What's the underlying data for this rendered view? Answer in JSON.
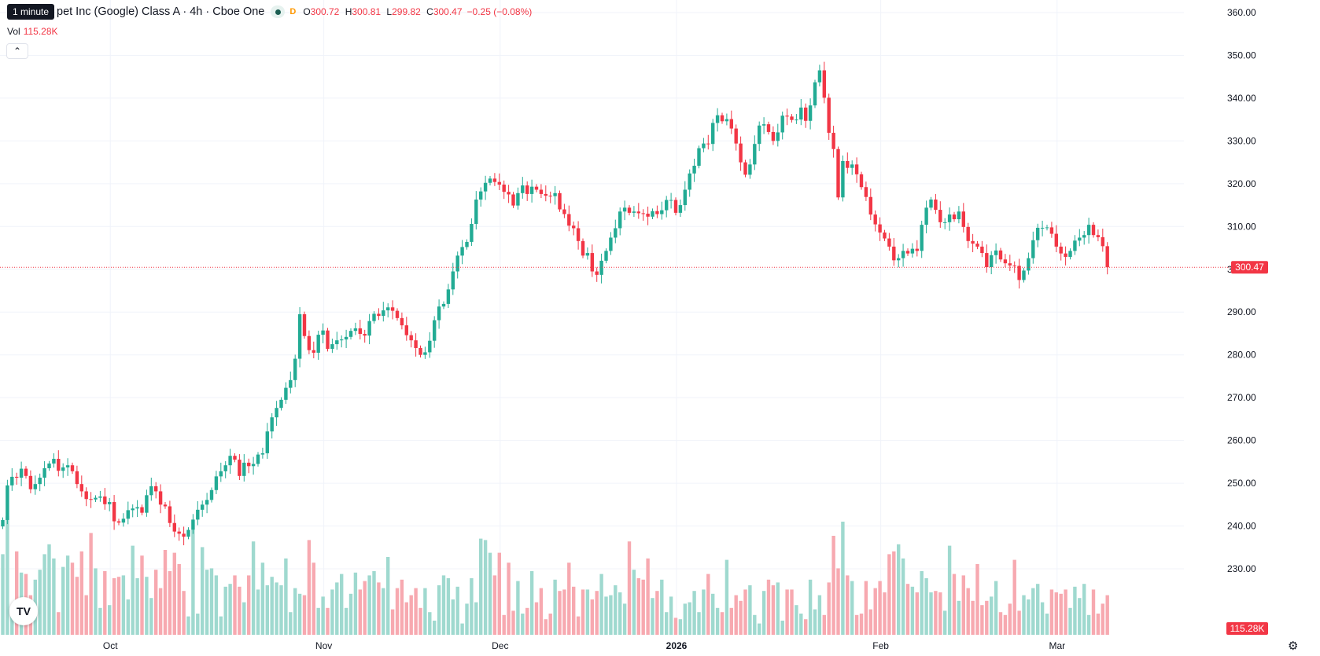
{
  "header": {
    "symbol_title": "pet Inc (Google) Class A · 4h · Cboe One",
    "interval_flag": "D",
    "ohlc": {
      "o_label": "O",
      "o": "300.72",
      "h_label": "H",
      "h": "300.81",
      "l_label": "L",
      "l": "299.82",
      "c_label": "C",
      "c": "300.47"
    },
    "change": "−0.25 (−0.08%)",
    "vol_label": "Vol",
    "vol_value": "115.28K",
    "collapse_icon": "chevron-up-icon",
    "tooltip": "1 minute"
  },
  "colors": {
    "up": "#22ab94",
    "down": "#f23645",
    "up_volume": "#9fd9cf",
    "down_volume": "#f7a9b0",
    "grid": "#f0f3fa",
    "axis_text": "#131722"
  },
  "logo_text": "TV",
  "settings_icon": "gear-icon",
  "chart_data": {
    "type": "candlestick",
    "yaxis": {
      "ticks": [
        "360.00",
        "350.00",
        "340.00",
        "330.00",
        "320.00",
        "310.00",
        "300.00",
        "290.00",
        "280.00",
        "270.00",
        "260.00",
        "250.00",
        "240.00",
        "230.00"
      ],
      "ylim": [
        227,
        362
      ]
    },
    "xaxis": {
      "ticks": [
        {
          "label": "Oct",
          "bold": false,
          "i": 23
        },
        {
          "label": "Nov",
          "bold": false,
          "i": 69
        },
        {
          "label": "Dec",
          "bold": false,
          "i": 107
        },
        {
          "label": "2026",
          "bold": true,
          "i": 145
        },
        {
          "label": "Feb",
          "bold": false,
          "i": 189
        },
        {
          "label": "Mar",
          "bold": false,
          "i": 227
        }
      ]
    },
    "last_price": "300.47",
    "last_volume": "115.28K",
    "close": [
      241.4,
      249.5,
      251.5,
      251.3,
      253.4,
      251.7,
      248.6,
      249.8,
      251.3,
      253.5,
      254.6,
      255.7,
      252.9,
      253.7,
      254.2,
      252.8,
      249.8,
      248.1,
      246.3,
      246.2,
      246.6,
      246.9,
      245.1,
      245.6,
      241.1,
      240.8,
      241.7,
      243.7,
      244.1,
      244.4,
      243.1,
      247.2,
      249.3,
      248.1,
      245.0,
      244.6,
      240.7,
      238.7,
      238.2,
      237.5,
      239.1,
      241.5,
      243.8,
      245.0,
      246.1,
      248.4,
      251.6,
      252.8,
      254.2,
      256.4,
      255.5,
      251.7,
      254.8,
      254.0,
      254.5,
      256.7,
      257.0,
      262.1,
      265.4,
      267.6,
      269.5,
      272.3,
      274.1,
      279.1,
      289.5,
      284.4,
      281.1,
      280.5,
      284.7,
      285.7,
      281.4,
      282.5,
      283.4,
      283.6,
      284.2,
      285.6,
      286.2,
      284.9,
      284.5,
      287.9,
      289.6,
      289.1,
      290.4,
      291.1,
      290.3,
      288.6,
      286.9,
      284.6,
      283.4,
      281.6,
      280.0,
      280.6,
      283.3,
      288.1,
      291.3,
      291.9,
      295.3,
      299.5,
      303.2,
      305.2,
      306.4,
      310.6,
      316.3,
      318.2,
      320.2,
      321.2,
      320.4,
      319.8,
      318.1,
      317.5,
      314.9,
      317.8,
      319.6,
      317.6,
      319.3,
      318.6,
      317.6,
      317.2,
      317.1,
      317.8,
      314.0,
      312.9,
      310.2,
      309.6,
      306.6,
      303.2,
      303.8,
      299.5,
      298.7,
      302.0,
      304.3,
      307.4,
      309.6,
      313.5,
      314.4,
      313.2,
      313.5,
      313.1,
      313.0,
      312.3,
      313.6,
      312.9,
      313.8,
      316.2,
      316.2,
      313.2,
      315.0,
      318.6,
      322.4,
      324.2,
      328.3,
      329.4,
      329.3,
      334.2,
      336.0,
      334.6,
      335.1,
      332.9,
      329.4,
      325.0,
      322.1,
      324.5,
      329.3,
      333.6,
      333.9,
      332.1,
      330.0,
      332.0,
      335.9,
      335.7,
      334.9,
      335.0,
      337.8,
      334.7,
      338.3,
      343.7,
      346.5,
      340.1,
      331.9,
      328.1,
      316.8,
      325.3,
      323.7,
      324.5,
      322.2,
      319.2,
      316.9,
      312.8,
      310.5,
      308.6,
      307.2,
      305.3,
      302.1,
      302.6,
      304.3,
      303.7,
      304.8,
      304.3,
      310.4,
      314.4,
      316.3,
      313.9,
      311.0,
      311.0,
      312.8,
      311.7,
      313.5,
      309.9,
      306.6,
      306.0,
      305.3,
      303.8,
      300.5,
      303.3,
      304.4,
      302.3,
      301.4,
      300.9,
      300.8,
      297.5,
      299.7,
      302.6,
      306.8,
      309.7,
      309.7,
      309.8,
      308.3,
      305.3,
      303.7,
      302.9,
      304.3,
      306.7,
      307.4,
      308.0,
      310.4,
      308.0,
      307.5,
      305.4,
      300.47
    ],
    "volume": [
      40,
      47,
      38,
      39,
      38,
      36,
      39,
      38,
      37,
      38,
      41,
      39,
      38,
      37,
      36,
      35,
      37,
      39,
      35,
      36,
      38,
      37,
      36,
      36,
      34,
      33,
      35,
      36,
      37,
      34,
      36,
      37,
      39,
      36,
      35,
      34,
      33,
      34,
      35,
      36,
      38,
      40,
      38,
      36,
      35,
      35,
      37,
      39,
      41,
      42,
      43,
      45,
      40,
      38,
      37,
      36,
      36,
      38,
      40,
      43,
      45,
      47,
      49,
      52,
      59,
      55,
      50,
      48,
      47,
      49,
      45,
      43,
      42,
      41,
      42,
      43,
      44,
      43,
      42,
      41,
      40,
      40,
      41,
      42,
      43,
      42,
      41,
      40,
      39,
      39,
      40,
      42,
      44,
      46,
      47,
      48,
      50,
      53,
      57,
      60,
      56,
      51,
      48,
      46,
      45,
      44,
      46,
      48,
      47,
      45,
      44,
      43,
      43,
      42,
      42,
      41,
      41,
      40,
      41,
      40,
      41,
      42,
      43,
      44,
      46,
      48,
      47,
      46,
      45,
      44,
      43,
      42,
      40,
      38,
      38,
      39,
      40,
      40,
      39,
      38,
      39,
      39,
      38,
      38,
      39,
      40,
      40,
      41,
      42,
      43,
      44,
      45,
      44,
      43,
      42,
      41,
      40,
      40,
      41,
      42,
      43,
      44,
      45,
      44,
      43,
      43,
      42,
      41,
      42,
      43,
      44,
      45,
      46,
      47,
      48,
      49,
      50,
      52,
      55,
      60,
      57,
      52,
      49,
      48,
      47,
      46,
      45,
      44,
      43,
      43,
      42,
      42,
      42,
      43,
      44,
      46,
      47,
      45,
      44,
      43,
      42,
      41,
      40,
      40,
      40,
      41,
      41,
      42,
      43,
      44,
      45,
      46,
      47,
      46,
      45,
      44,
      44,
      43,
      43,
      42,
      42,
      41,
      42,
      43,
      43,
      42,
      42,
      41,
      40,
      40,
      39,
      40,
      40,
      40,
      41,
      40,
      39,
      38,
      36
    ],
    "volume_heights": [
      57,
      84,
      18,
      59,
      44,
      43,
      28,
      39,
      46,
      57,
      64,
      54,
      16,
      48,
      56,
      51,
      41,
      59,
      28,
      72,
      47,
      19,
      45,
      21,
      40,
      41,
      42,
      25,
      63,
      40,
      56,
      41,
      26,
      46,
      33,
      60,
      45,
      58,
      50,
      31,
      13,
      74,
      15,
      62,
      46,
      47,
      42,
      13,
      34,
      36,
      42,
      34,
      23,
      42,
      66,
      32,
      51,
      35,
      41,
      37,
      35,
      54,
      16,
      33,
      29,
      28,
      67,
      51,
      19,
      27,
      19,
      32,
      37,
      43,
      19,
      29,
      44,
      32,
      38,
      42,
      45,
      37,
      33,
      55,
      18,
      33,
      39,
      23,
      28,
      33,
      19,
      33,
      16,
      10,
      35,
      42,
      40,
      25,
      34,
      8,
      22,
      40,
      23,
      68,
      67,
      58,
      42,
      58,
      14,
      51,
      17,
      38,
      15,
      19,
      45,
      23,
      33,
      11,
      15,
      39,
      31,
      32,
      51,
      34,
      13,
      32,
      32,
      25,
      31,
      43,
      27,
      28,
      35,
      30,
      22,
      66,
      46,
      40,
      39,
      54,
      26,
      31,
      39,
      16,
      27,
      12,
      11,
      22,
      23,
      31,
      16,
      32,
      43,
      29,
      19,
      16,
      53,
      19,
      28,
      24,
      32,
      35,
      14,
      8,
      31,
      39,
      35,
      37,
      10,
      32,
      32,
      21,
      15,
      11,
      39,
      18,
      28,
      14,
      37,
      70,
      47,
      80,
      42,
      38,
      14,
      15,
      38,
      18,
      33,
      38,
      30,
      57,
      59,
      64,
      54,
      36,
      34,
      30,
      45,
      40,
      30,
      31,
      30,
      17,
      63,
      43,
      24,
      42,
      33,
      24,
      50,
      21,
      24,
      27,
      38,
      16,
      14,
      22,
      53,
      17,
      28,
      25,
      33,
      36,
      23,
      15,
      32,
      30,
      29,
      32,
      19,
      34,
      26,
      36,
      14,
      32,
      15,
      22,
      28,
      37,
      19,
      42,
      40,
      23,
      36,
      24,
      37,
      20,
      19,
      38,
      16,
      37,
      34,
      4
    ],
    "volume_scale_note_heights_px": "",
    "current_volume_label": "115.28K"
  }
}
